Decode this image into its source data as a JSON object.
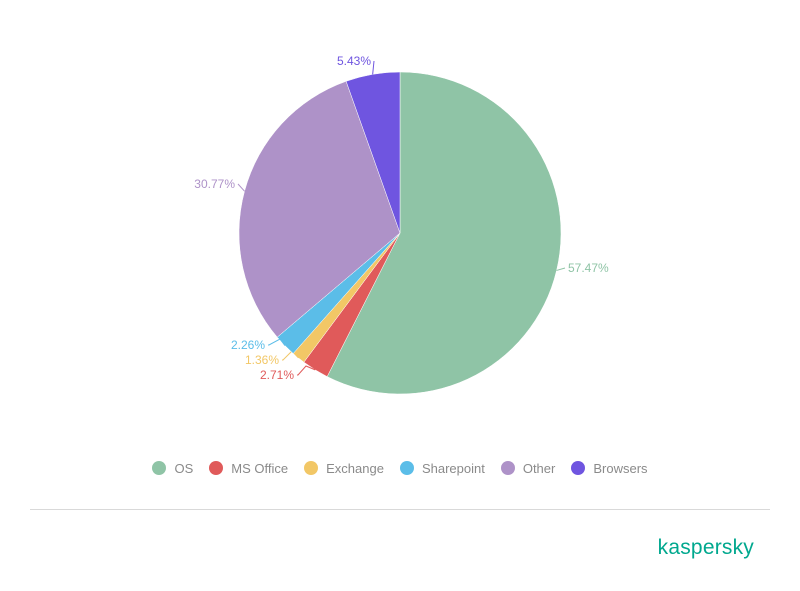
{
  "chart_data": {
    "type": "pie",
    "categories": [
      "OS",
      "MS Office",
      "Exchange",
      "Sharepoint",
      "Other",
      "Browsers"
    ],
    "values": [
      57.47,
      2.71,
      1.36,
      2.26,
      30.77,
      5.43
    ],
    "data_labels": [
      "57.47%",
      "2.71%",
      "1.36%",
      "2.26%",
      "30.77%",
      "5.43%"
    ],
    "colors": [
      "#8fc4a6",
      "#e05a5a",
      "#f2c766",
      "#5bbde8",
      "#ae92c8",
      "#6f55e0"
    ],
    "start": "top, clockwise",
    "legend_position": "bottom-center"
  },
  "brand": {
    "logo_text": "kaspersky",
    "color": "#00a88e"
  }
}
